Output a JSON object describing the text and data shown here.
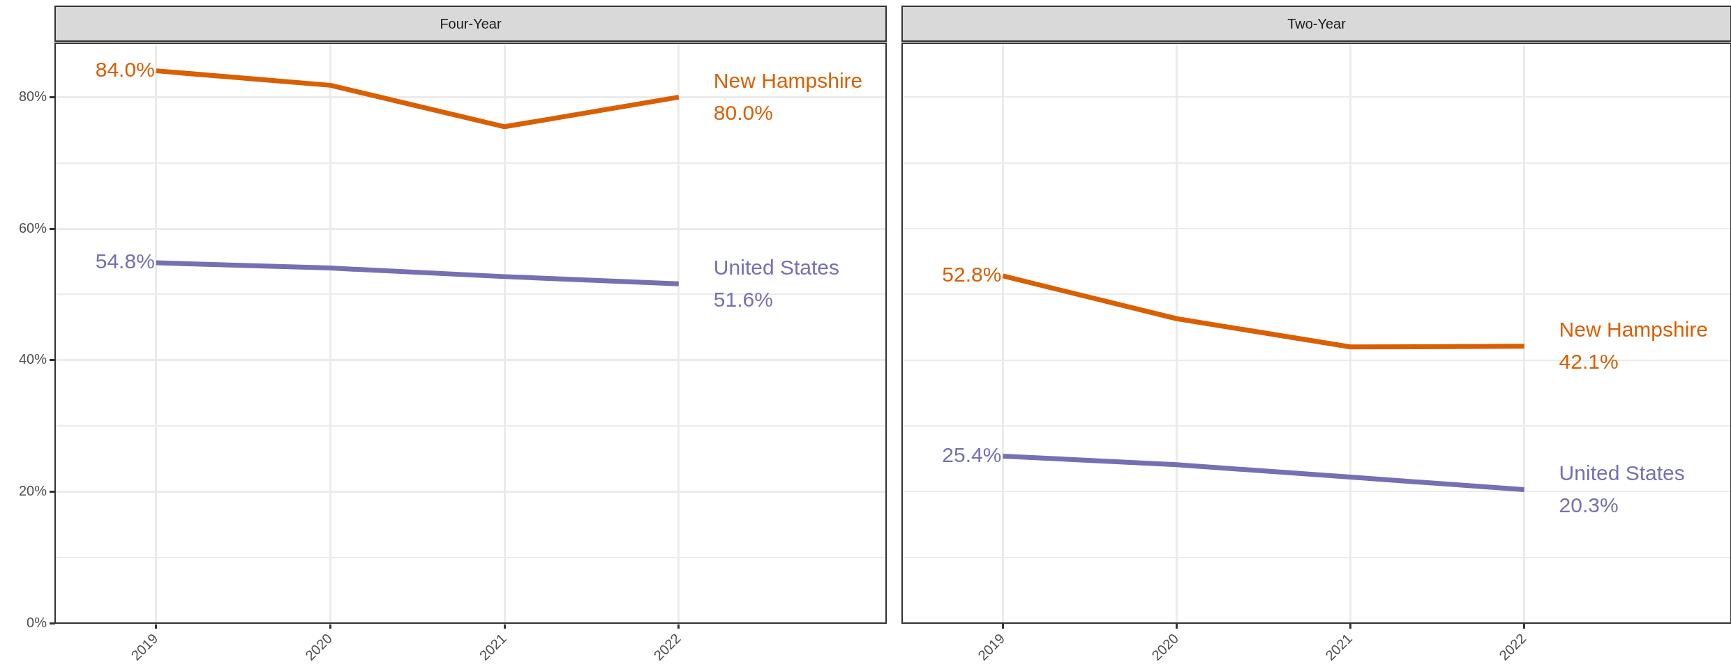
{
  "chart_data": [
    {
      "type": "line",
      "title": "Four-Year",
      "x": [
        2019,
        2020,
        2021,
        2022
      ],
      "xlim": [
        2018.42,
        2023.19
      ],
      "xticks": [
        2019,
        2020,
        2021,
        2022
      ],
      "ylim": [
        0,
        88.2
      ],
      "yticks": [
        {
          "value": 0,
          "label": "0%"
        },
        {
          "value": 10,
          "label": null
        },
        {
          "value": 20,
          "label": "20%"
        },
        {
          "value": 30,
          "label": null
        },
        {
          "value": 40,
          "label": "40%"
        },
        {
          "value": 50,
          "label": null
        },
        {
          "value": 60,
          "label": "60%"
        },
        {
          "value": 70,
          "label": null
        },
        {
          "value": 80,
          "label": "80%"
        }
      ],
      "grid": true,
      "legend": false,
      "series": [
        {
          "name": "New Hampshire",
          "color": "#d95f02",
          "values": [
            84.0,
            81.8,
            75.5,
            80.0
          ],
          "value_labels": [
            "84.0%",
            null,
            null,
            "80.0%"
          ]
        },
        {
          "name": "United States",
          "color": "#7570b3",
          "values": [
            54.8,
            54.0,
            52.7,
            51.6
          ],
          "value_labels": [
            "54.8%",
            null,
            null,
            "51.6%"
          ]
        }
      ]
    },
    {
      "type": "line",
      "title": "Two-Year",
      "x": [
        2019,
        2020,
        2021,
        2022
      ],
      "xlim": [
        2018.42,
        2023.19
      ],
      "xticks": [
        2019,
        2020,
        2021,
        2022
      ],
      "ylim": [
        0,
        88.2
      ],
      "yticks": [
        {
          "value": 0,
          "label": null
        },
        {
          "value": 10,
          "label": null
        },
        {
          "value": 20,
          "label": null
        },
        {
          "value": 30,
          "label": null
        },
        {
          "value": 40,
          "label": null
        },
        {
          "value": 50,
          "label": null
        },
        {
          "value": 60,
          "label": null
        },
        {
          "value": 70,
          "label": null
        },
        {
          "value": 80,
          "label": null
        }
      ],
      "grid": true,
      "legend": false,
      "tick_labels": "x",
      "series": [
        {
          "name": "New Hampshire",
          "color": "#d95f02",
          "values": [
            52.8,
            46.3,
            42.0,
            42.1
          ],
          "value_labels": [
            "52.8%",
            null,
            null,
            "42.1%"
          ]
        },
        {
          "name": "United States",
          "color": "#7570b3",
          "values": [
            25.4,
            24.1,
            22.2,
            20.3
          ],
          "value_labels": [
            "25.4%",
            null,
            null,
            "20.3%"
          ]
        }
      ]
    }
  ]
}
